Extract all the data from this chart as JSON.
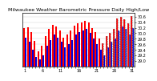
{
  "title": "Milwaukee Weather Barometric Pressure Daily High/Low",
  "ylim": [
    28.8,
    30.75
  ],
  "yticks": [
    29.0,
    29.2,
    29.4,
    29.6,
    29.8,
    30.0,
    30.2,
    30.4,
    30.6
  ],
  "ytick_labels": [
    "29.0",
    "29.2",
    "29.4",
    "29.6",
    "29.8",
    "30.0",
    "30.2",
    "30.4",
    "30.6"
  ],
  "categories": [
    1,
    2,
    3,
    4,
    5,
    6,
    7,
    8,
    9,
    10,
    11,
    12,
    13,
    14,
    15,
    16,
    17,
    18,
    19,
    20,
    21,
    22,
    23,
    24,
    25,
    26,
    27,
    28,
    29,
    30,
    31
  ],
  "high_values": [
    30.18,
    30.22,
    30.05,
    29.72,
    29.35,
    29.55,
    29.9,
    30.15,
    30.3,
    30.25,
    30.1,
    29.85,
    29.95,
    30.1,
    30.28,
    30.35,
    30.4,
    30.45,
    30.38,
    30.2,
    30.05,
    29.8,
    29.65,
    29.9,
    30.0,
    30.15,
    30.55,
    30.6,
    30.5,
    30.35,
    30.62
  ],
  "low_values": [
    29.85,
    29.7,
    29.4,
    29.15,
    29.05,
    29.2,
    29.55,
    29.75,
    29.95,
    29.85,
    29.7,
    29.5,
    29.6,
    29.75,
    29.95,
    30.05,
    30.1,
    30.15,
    30.0,
    29.8,
    29.6,
    29.4,
    29.2,
    29.5,
    29.7,
    29.8,
    30.1,
    30.25,
    30.15,
    29.95,
    30.2
  ],
  "high_color": "#ff0000",
  "low_color": "#0000dd",
  "background_color": "#ffffff",
  "title_fontsize": 4.5,
  "tick_fontsize": 3.5,
  "bar_width": 0.45,
  "dashed_indices": [
    22,
    23,
    24,
    25,
    26,
    27,
    28,
    29,
    30
  ],
  "xlabels_show": [
    1,
    6,
    11,
    16,
    21,
    26,
    31
  ]
}
